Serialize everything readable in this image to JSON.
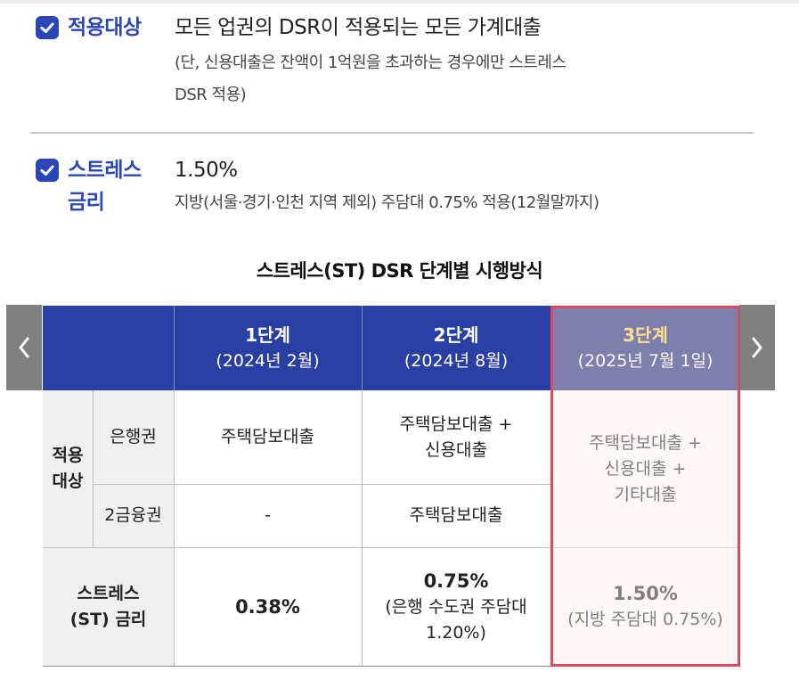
{
  "info": {
    "target": {
      "label": "적용대상",
      "main": "모든 업권의 DSR이 적용되는 모든 가계대출",
      "note_line1": "(단, 신용대출은 잔액이 1억원을 초과하는 경우에만 스트레스",
      "note_line2": "DSR 적용)"
    },
    "rate": {
      "label_line1": "스트레스",
      "label_line2": "금리",
      "main": "1.50%",
      "note": "지방(서울·경기·인천 지역 제외) 주담대 0.75% 적용(12월말까지)"
    }
  },
  "table": {
    "title": "스트레스(ST) DSR 단계별 시행방식",
    "headers": [
      {
        "step": "1단계",
        "date": "(2024년 2월)"
      },
      {
        "step": "2단계",
        "date": "(2024년 8월)"
      },
      {
        "step": "3단계",
        "date": "(2025년 7월 1일)"
      }
    ],
    "row_group_label_line1": "적용",
    "row_group_label_line2": "대상",
    "bank_label": "은행권",
    "second_tier_label": "2금융권",
    "bank": {
      "s1": "주택담보대출",
      "s2_line1": "주택담보대출 +",
      "s2_line2": "신용대출"
    },
    "second_tier": {
      "s1": "-",
      "s2": "주택담보대출"
    },
    "s3_target_line1": "주택담보대출 +",
    "s3_target_line2": "신용대출 +",
    "s3_target_line3": "기타대출",
    "rate_label_line1": "스트레스",
    "rate_label_line2": "(ST) 금리",
    "rates": {
      "s1": "0.38%",
      "s2_main": "0.75%",
      "s2_sub_line1": "(은행 수도권 주담대",
      "s2_sub_line2": "1.20%)",
      "s3_main": "1.50%",
      "s3_sub": "(지방 주담대 0.75%)"
    }
  },
  "icons": {
    "check": "checkbox-checked-icon",
    "prev": "chevron-left-icon",
    "next": "chevron-right-icon"
  },
  "colors": {
    "accent": "#2a46b8",
    "header": "#2a3fa3",
    "header_highlight": "#1a2677",
    "step3_text": "#ffd43b",
    "highlight_border": "#e0485b"
  }
}
